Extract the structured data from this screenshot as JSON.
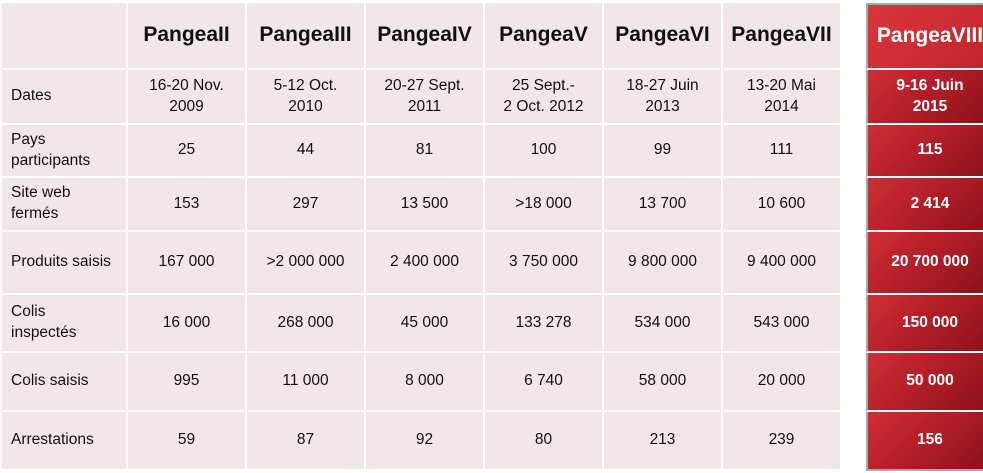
{
  "columns": [
    {
      "line1": "Pangea",
      "line2": "II"
    },
    {
      "line1": "Pangea",
      "line2": "III"
    },
    {
      "line1": "Pangea",
      "line2": "IV"
    },
    {
      "line1": "Pangea",
      "line2": "V"
    },
    {
      "line1": "Pangea",
      "line2": "VI"
    },
    {
      "line1": "Pangea",
      "line2": "VII"
    },
    {
      "line1": "Pangea",
      "line2": "VIII"
    }
  ],
  "rows": [
    {
      "label": [
        "Dates"
      ],
      "values": [
        [
          "16-20 Nov.",
          "2009"
        ],
        [
          "5-12 Oct.",
          "2010"
        ],
        [
          "20-27 Sept.",
          "2011"
        ],
        [
          "25 Sept.-",
          "2 Oct. 2012"
        ],
        [
          "18-27 Juin",
          "2013"
        ],
        [
          "13-20 Mai",
          "2014"
        ],
        [
          "9-16 Juin",
          "2015"
        ]
      ]
    },
    {
      "label": [
        "Pays",
        "participants"
      ],
      "values": [
        [
          "25"
        ],
        [
          "44"
        ],
        [
          "81"
        ],
        [
          "100"
        ],
        [
          "99"
        ],
        [
          "111"
        ],
        [
          "115"
        ]
      ]
    },
    {
      "label": [
        "Site web",
        "fermés"
      ],
      "values": [
        [
          "153"
        ],
        [
          "297"
        ],
        [
          "13 500"
        ],
        [
          ">18 000"
        ],
        [
          "13 700"
        ],
        [
          "10 600"
        ],
        [
          "2 414"
        ]
      ]
    },
    {
      "label": [
        "Produits saisis"
      ],
      "values": [
        [
          "167 000"
        ],
        [
          ">2 000 000"
        ],
        [
          "2 400 000"
        ],
        [
          "3 750 000"
        ],
        [
          "9 800 000"
        ],
        [
          "9 400 000"
        ],
        [
          "20 700 000"
        ]
      ]
    },
    {
      "label": [
        "Colis",
        "inspectés"
      ],
      "values": [
        [
          "16 000"
        ],
        [
          "268 000"
        ],
        [
          "45 000"
        ],
        [
          "133 278"
        ],
        [
          "534 000"
        ],
        [
          "543 000"
        ],
        [
          "150 000"
        ]
      ]
    },
    {
      "label": [
        "Colis saisis"
      ],
      "values": [
        [
          "995"
        ],
        [
          "11 000"
        ],
        [
          "8 000"
        ],
        [
          "6 740"
        ],
        [
          "58 000"
        ],
        [
          "20 000"
        ],
        [
          "50 000"
        ]
      ]
    },
    {
      "label": [
        "Arrestations"
      ],
      "values": [
        [
          "59"
        ],
        [
          "87"
        ],
        [
          "92"
        ],
        [
          "80"
        ],
        [
          "213"
        ],
        [
          "239"
        ],
        [
          "156"
        ]
      ]
    }
  ],
  "colors": {
    "cell_background": "#f2e7e7",
    "highlight_red": "#c2242c",
    "highlight_dark_red": "#8a1118"
  }
}
